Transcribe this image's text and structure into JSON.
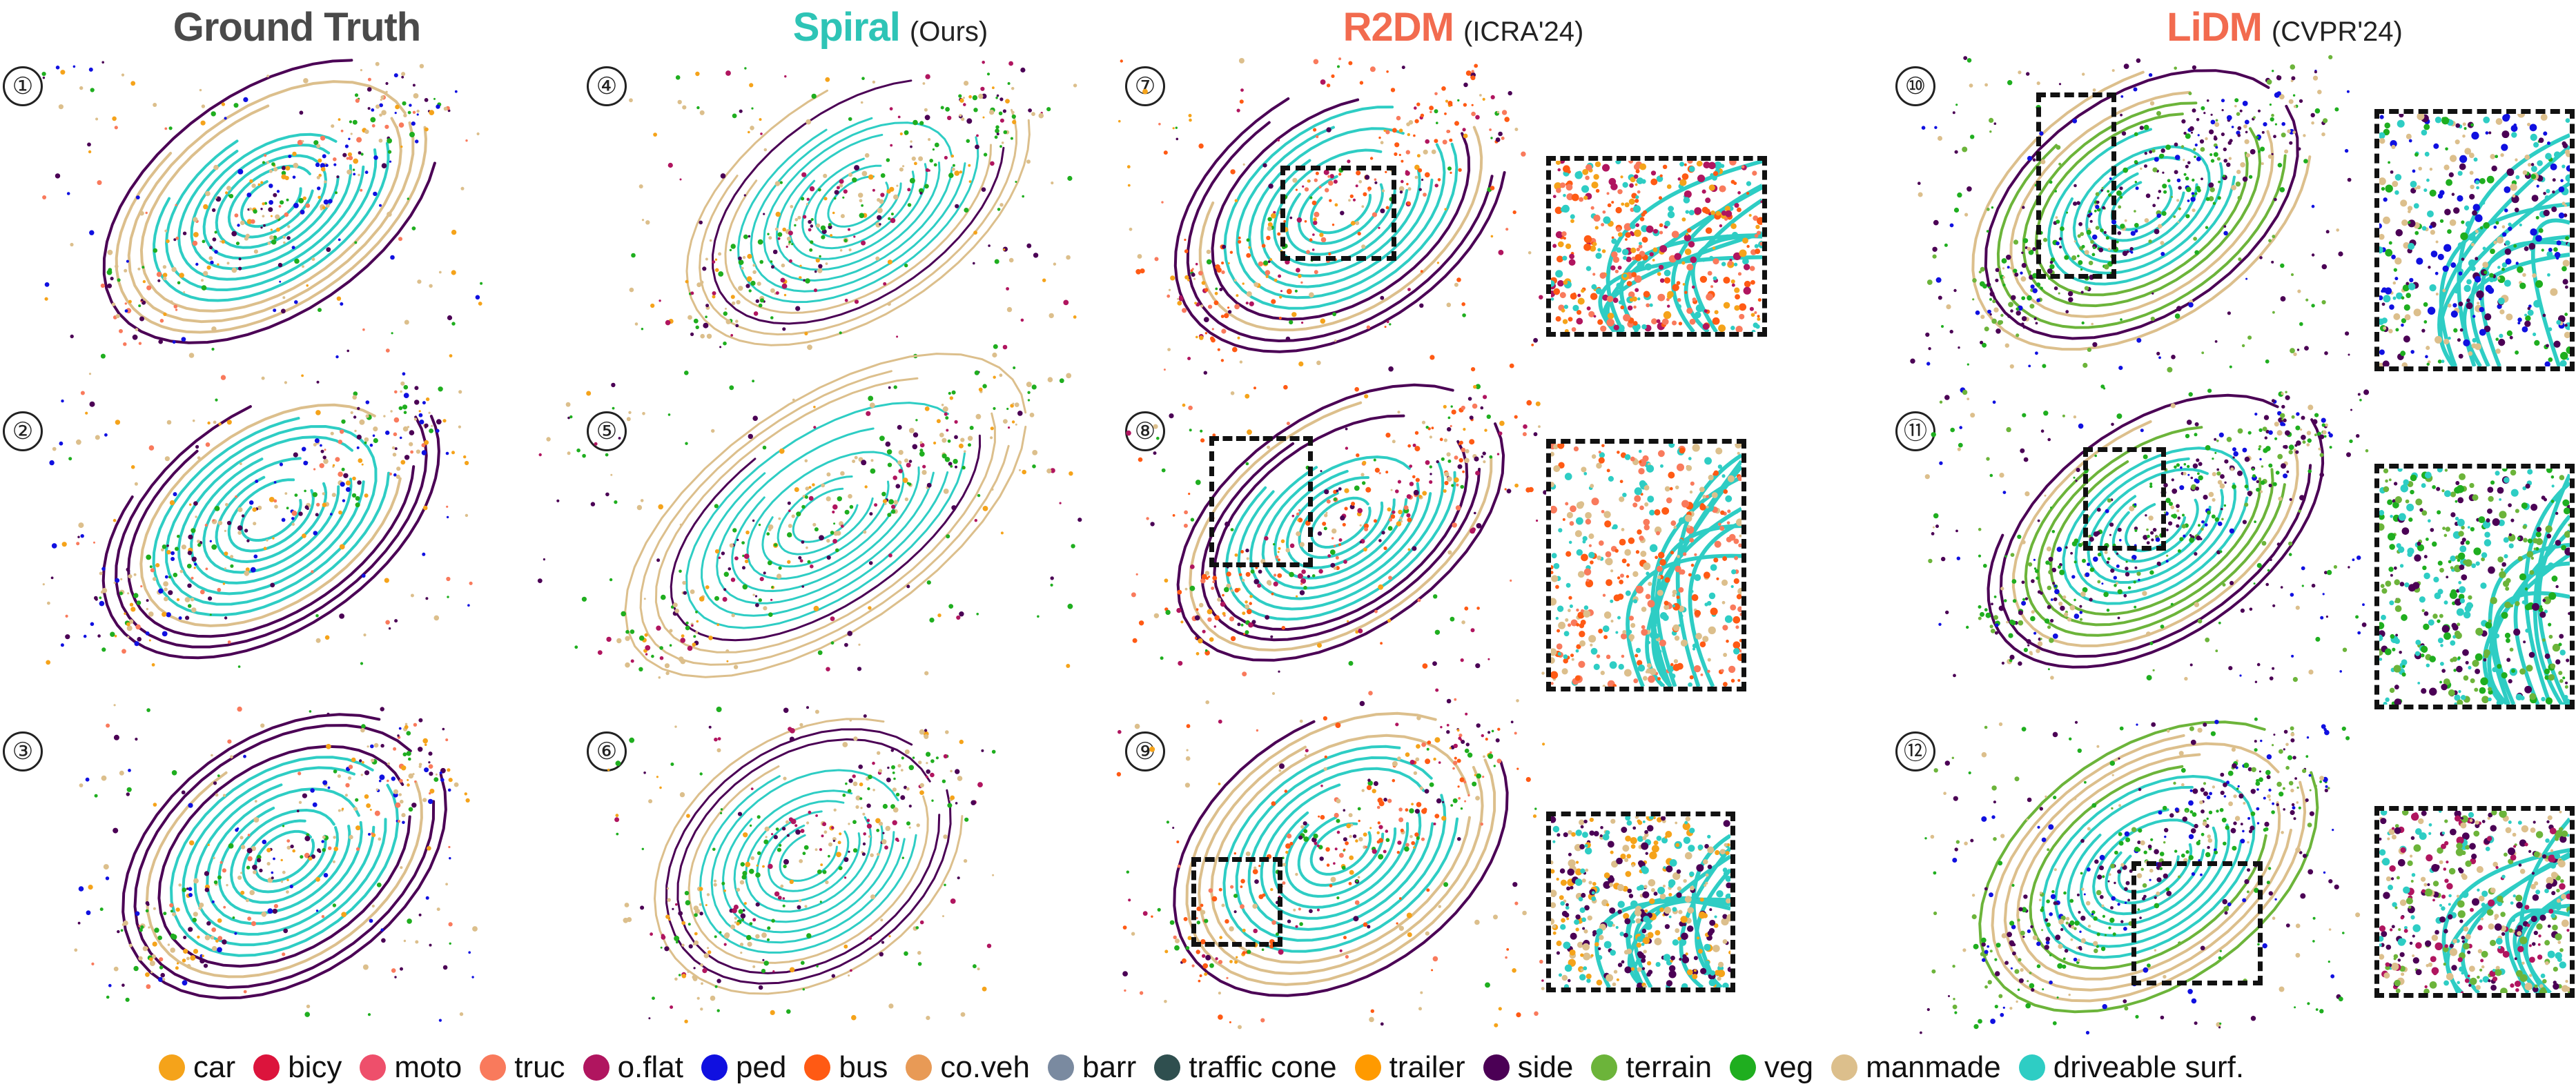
{
  "columns": [
    {
      "title": "Ground Truth",
      "subtitle": "",
      "color": "#4a4a4a"
    },
    {
      "title": "Spiral",
      "subtitle": "(Ours)",
      "color": "#2ec4b6"
    },
    {
      "title": "R2DM",
      "subtitle": "(ICRA'24)",
      "color": "#f26b4f"
    },
    {
      "title": "LiDM",
      "subtitle": "(CVPR'24)",
      "color": "#f26b4f"
    }
  ],
  "scene_numbers": [
    "①",
    "②",
    "③",
    "④",
    "⑤",
    "⑥",
    "⑦",
    "⑧",
    "⑨",
    "⑩",
    "⑪",
    "⑫"
  ],
  "legend": [
    {
      "label": "car",
      "color": "#f5a31a"
    },
    {
      "label": "bicy",
      "color": "#dc143c"
    },
    {
      "label": "moto",
      "color": "#ee4f6b"
    },
    {
      "label": "truc",
      "color": "#f97a5c"
    },
    {
      "label": "o.flat",
      "color": "#b0155f"
    },
    {
      "label": "ped",
      "color": "#1010e0"
    },
    {
      "label": "bus",
      "color": "#ff5a14"
    },
    {
      "label": "co.veh",
      "color": "#e89a56"
    },
    {
      "label": "barr",
      "color": "#7a8aa0"
    },
    {
      "label": "traffic cone",
      "color": "#2f4f4f"
    },
    {
      "label": "trailer",
      "color": "#ff9a00"
    },
    {
      "label": "side",
      "color": "#4b0055"
    },
    {
      "label": "terrain",
      "color": "#6cb43a"
    },
    {
      "label": "veg",
      "color": "#1fae1f"
    },
    {
      "label": "manmade",
      "color": "#dcbf8c"
    },
    {
      "label": "driveable surf.",
      "color": "#2ecdc4"
    }
  ]
}
